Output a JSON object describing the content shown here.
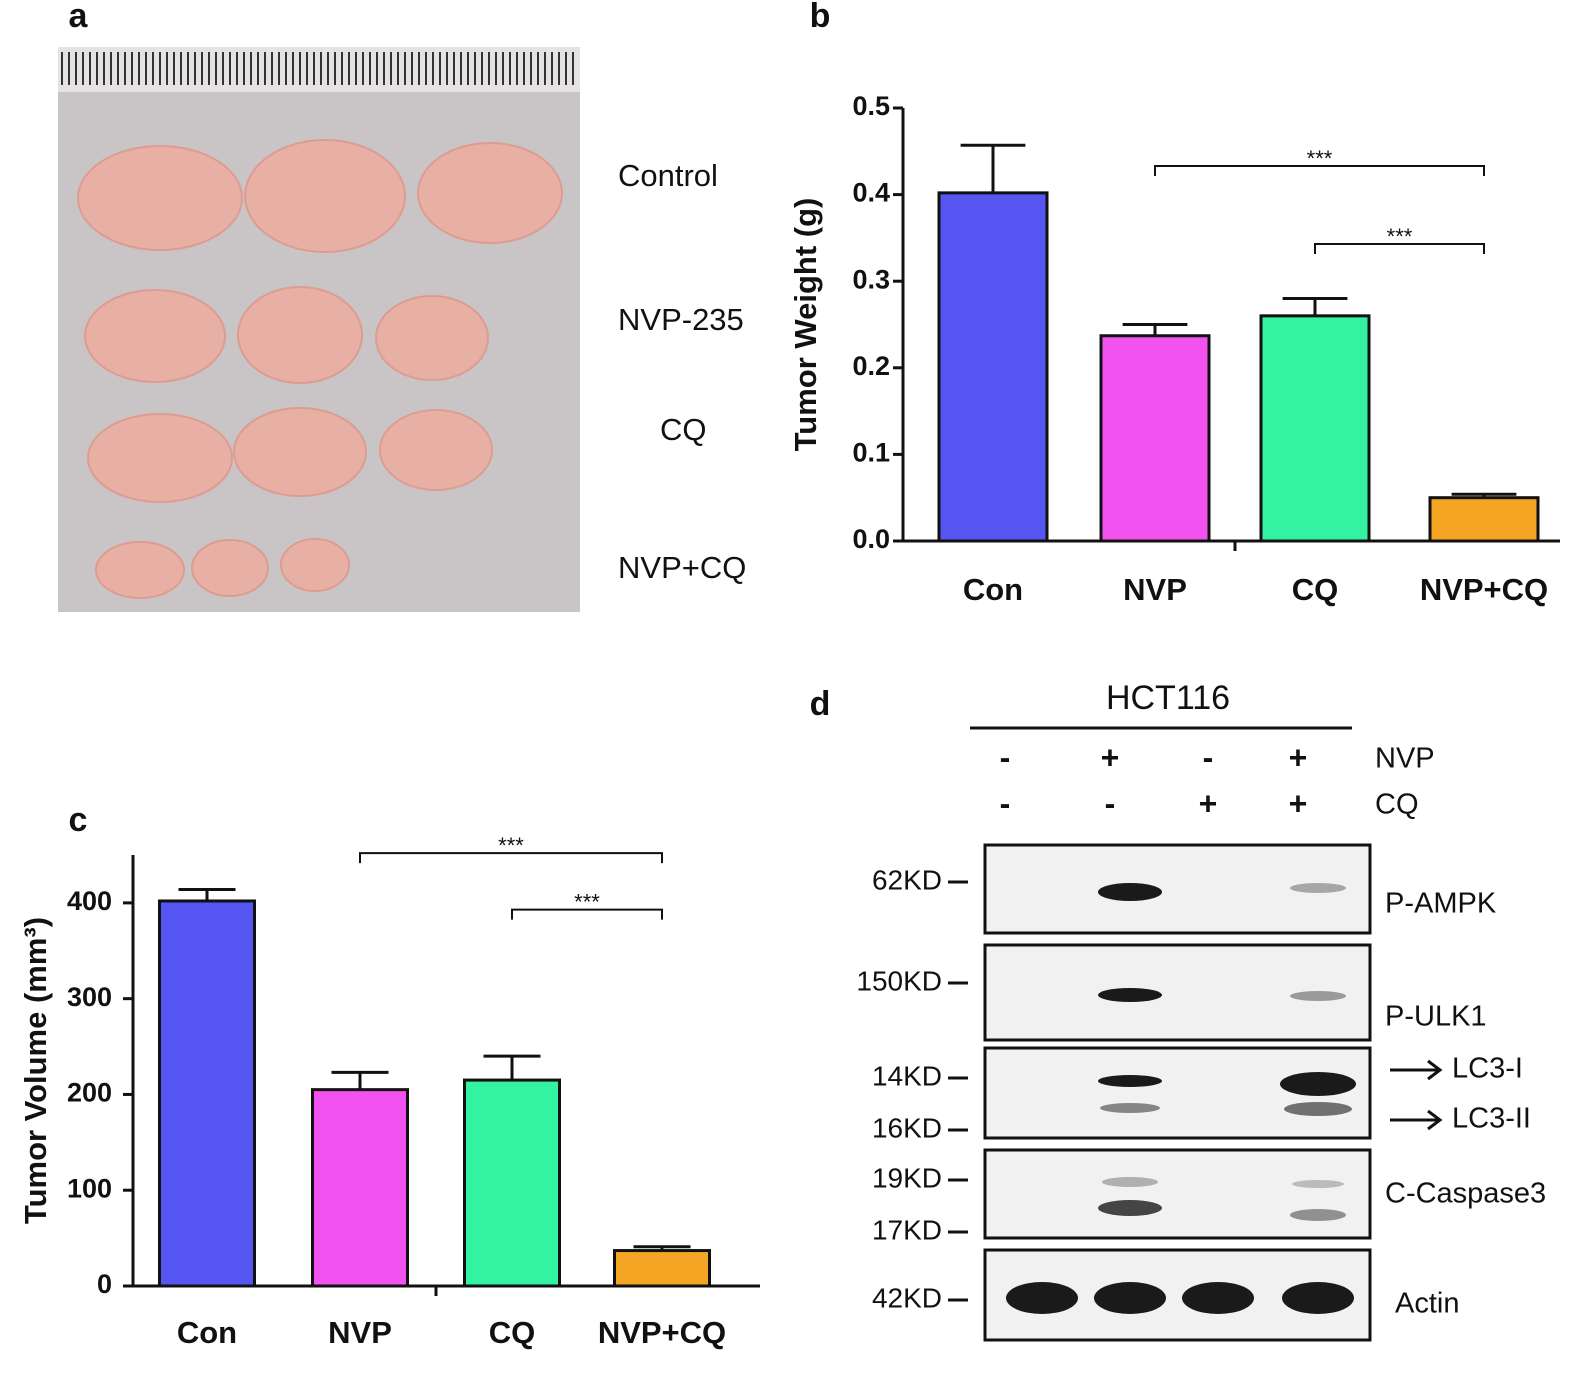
{
  "panel_labels": [
    "a",
    "b",
    "c",
    "d"
  ],
  "photo": {
    "labels": [
      "Control",
      "NVP-235",
      "CQ",
      "NVP+CQ"
    ]
  },
  "chart_data": [
    {
      "type": "bar",
      "y_label": "Tumor Weight (g)",
      "categories": [
        "Con",
        "NVP",
        "CQ",
        "NVP+CQ"
      ],
      "values": [
        0.402,
        0.237,
        0.26,
        0.05
      ],
      "errors": [
        0.055,
        0.013,
        0.02,
        0.004
      ],
      "colors": [
        "#5555f2",
        "#f252f0",
        "#33f2a2",
        "#f5a524"
      ],
      "ylim": [
        0,
        0.5
      ],
      "yticks": [
        {
          "value": 0,
          "label": "0.0"
        },
        0.1,
        0.2,
        0.3,
        0.4,
        0.5
      ],
      "significance": [
        {
          "between": [
            1,
            3
          ],
          "y": 0.433,
          "label": "***"
        },
        {
          "between": [
            2,
            3
          ],
          "y": 0.343,
          "label": "***"
        }
      ]
    },
    {
      "type": "bar",
      "y_label": "Tumor Volume (mm³)",
      "categories": [
        "Con",
        "NVP",
        "CQ",
        "NVP+CQ"
      ],
      "values": [
        402,
        205,
        215,
        37
      ],
      "errors": [
        12,
        18,
        25,
        4
      ],
      "colors": [
        "#5555f2",
        "#f252f0",
        "#33f2a2",
        "#f5a524"
      ],
      "ylim": [
        0,
        450
      ],
      "yticks": [
        0,
        100,
        200,
        300,
        400
      ],
      "significance": [
        {
          "between": [
            1,
            3
          ],
          "y": 452,
          "label": "***"
        },
        {
          "between": [
            2,
            3
          ],
          "y": 393,
          "label": "***"
        }
      ]
    }
  ],
  "blot": {
    "title": "HCT116",
    "treatments": [
      {
        "name": "NVP",
        "signs": [
          "-",
          "+",
          "-",
          "+"
        ]
      },
      {
        "name": "CQ",
        "signs": [
          "-",
          "-",
          "+",
          "+"
        ]
      }
    ],
    "markers": [
      "62KD",
      "150KD",
      "14KD",
      "16KD",
      "19KD",
      "17KD",
      "42KD"
    ],
    "proteins": [
      "P-AMPK",
      "P-ULK1",
      "LC3-I",
      "LC3-II",
      "C-Caspase3",
      "Actin"
    ]
  }
}
